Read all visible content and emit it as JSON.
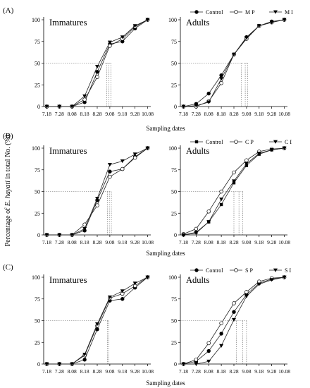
{
  "figure": {
    "ylabel_prefix": "Percentage of ",
    "ylabel_species": "E. hayati",
    "ylabel_suffix": " in total No. (%)",
    "xlabel": "Sampling dates"
  },
  "chart_data": [
    {
      "type": "line",
      "panel": "(A)",
      "title": "Immatures",
      "xlabel": "",
      "ylabel": "",
      "categories": [
        "7.18",
        "7.28",
        "8.08",
        "8.18",
        "8.28",
        "9.08",
        "9.18",
        "9.28",
        "10.08"
      ],
      "ylim": [
        0,
        100
      ],
      "yticks": [
        0,
        25,
        50,
        75,
        100
      ],
      "series": [
        {
          "values": [
            0,
            0,
            0,
            5,
            40,
            72,
            75,
            90,
            100
          ],
          "marker": "filled-circle"
        },
        {
          "values": [
            0,
            0,
            0,
            8,
            34,
            70,
            78,
            92,
            100
          ],
          "marker": "open-circle"
        },
        {
          "values": [
            0,
            0,
            0,
            12,
            46,
            74,
            80,
            93,
            100
          ],
          "marker": "filled-triangle"
        }
      ],
      "guides": {
        "y": 50,
        "x": [
          4.75,
          4.93,
          5.1
        ]
      }
    },
    {
      "type": "line",
      "panel": "",
      "title": "Adults",
      "xlabel": "",
      "ylabel": "",
      "categories": [
        "7.18",
        "7.28",
        "8.08",
        "8.18",
        "8.28",
        "9.08",
        "9.18",
        "9.28",
        "10.08"
      ],
      "ylim": [
        0,
        100
      ],
      "yticks": [
        0,
        25,
        50,
        75,
        100
      ],
      "legend": [
        "Control",
        "M P",
        "M I"
      ],
      "legend_position": "top",
      "series": [
        {
          "name": "Control",
          "values": [
            0,
            3,
            15,
            36,
            60,
            80,
            93,
            98,
            100
          ],
          "marker": "filled-circle"
        },
        {
          "name": "M P",
          "values": [
            0,
            0,
            6,
            27,
            60,
            78,
            93,
            97,
            100
          ],
          "marker": "open-circle"
        },
        {
          "name": "M I",
          "values": [
            0,
            1,
            5,
            32,
            60,
            79,
            93,
            97,
            100
          ],
          "marker": "filled-triangle"
        }
      ],
      "guides": {
        "y": 50,
        "x": [
          4.6,
          4.9,
          5.1
        ]
      }
    },
    {
      "type": "line",
      "panel": "(B)",
      "title": "Immatures",
      "xlabel": "",
      "ylabel": "",
      "categories": [
        "7.18",
        "7.28",
        "8.08",
        "8.18",
        "8.28",
        "9.08",
        "9.18",
        "9.28",
        "10.08"
      ],
      "ylim": [
        0,
        100
      ],
      "yticks": [
        0,
        25,
        50,
        75,
        100
      ],
      "series": [
        {
          "values": [
            0,
            0,
            0,
            5,
            40,
            73,
            76,
            90,
            100
          ],
          "marker": "filled-circle"
        },
        {
          "values": [
            0,
            0,
            0,
            12,
            34,
            67,
            76,
            89,
            100
          ],
          "marker": "open-circle"
        },
        {
          "values": [
            0,
            0,
            0,
            7,
            42,
            81,
            85,
            93,
            100
          ],
          "marker": "filled-triangle"
        }
      ],
      "guides": {
        "y": 50,
        "x": [
          4.82,
          4.96,
          5.12
        ]
      }
    },
    {
      "type": "line",
      "panel": "",
      "title": "Adults",
      "xlabel": "",
      "ylabel": "",
      "categories": [
        "7.18",
        "7.28",
        "8.08",
        "8.18",
        "8.28",
        "9.08",
        "9.18",
        "9.28",
        "10.08"
      ],
      "ylim": [
        0,
        100
      ],
      "yticks": [
        0,
        25,
        50,
        75,
        100
      ],
      "legend": [
        "Control",
        "C P",
        "C I"
      ],
      "legend_position": "top",
      "series": [
        {
          "name": "Control",
          "values": [
            0,
            3,
            15,
            35,
            60,
            80,
            93,
            98,
            100
          ],
          "marker": "filled-square"
        },
        {
          "name": "C P",
          "values": [
            1,
            7,
            27,
            50,
            72,
            86,
            96,
            99,
            100
          ],
          "marker": "open-circle"
        },
        {
          "name": "C I",
          "values": [
            0,
            2,
            15,
            41,
            62,
            82,
            94,
            98,
            100
          ],
          "marker": "filled-triangle"
        }
      ],
      "guides": {
        "y": 50,
        "x": [
          4.0,
          4.4,
          4.7
        ]
      }
    },
    {
      "type": "line",
      "panel": "(C)",
      "title": "Immatures",
      "xlabel": "",
      "ylabel": "",
      "categories": [
        "7.18",
        "7.28",
        "8.08",
        "8.18",
        "8.28",
        "9.08",
        "9.18",
        "9.28",
        "10.08"
      ],
      "ylim": [
        0,
        100
      ],
      "yticks": [
        0,
        25,
        50,
        75,
        100
      ],
      "series": [
        {
          "values": [
            0,
            0,
            0,
            5,
            40,
            73,
            75,
            88,
            100
          ],
          "marker": "filled-circle"
        },
        {
          "values": [
            0,
            0,
            0,
            10,
            44,
            76,
            81,
            90,
            100
          ],
          "marker": "open-circle"
        },
        {
          "values": [
            0,
            0,
            0,
            11,
            46,
            77,
            84,
            93,
            100
          ],
          "marker": "filled-triangle"
        }
      ],
      "guides": {
        "y": 50,
        "x": [
          4.8,
          4.93
        ]
      }
    },
    {
      "type": "line",
      "panel": "",
      "title": "Adults",
      "xlabel": "",
      "ylabel": "",
      "categories": [
        "7.18",
        "7.28",
        "8.08",
        "8.18",
        "8.28",
        "9.08",
        "9.18",
        "9.28",
        "10.08"
      ],
      "ylim": [
        0,
        100
      ],
      "yticks": [
        0,
        25,
        50,
        75,
        100
      ],
      "legend": [
        "Control",
        "S P",
        "S I"
      ],
      "legend_position": "top",
      "series": [
        {
          "name": "Control",
          "values": [
            0,
            3,
            15,
            35,
            60,
            80,
            93,
            98,
            100
          ],
          "marker": "filled-circle"
        },
        {
          "name": "S P",
          "values": [
            0,
            5,
            24,
            47,
            70,
            83,
            95,
            99,
            100
          ],
          "marker": "open-circle"
        },
        {
          "name": "S I",
          "values": [
            0,
            0,
            3,
            21,
            51,
            78,
            92,
            97,
            100
          ],
          "marker": "filled-triangle"
        }
      ],
      "guides": {
        "y": 50,
        "x": [
          4.2,
          4.7,
          5.0
        ]
      }
    }
  ]
}
